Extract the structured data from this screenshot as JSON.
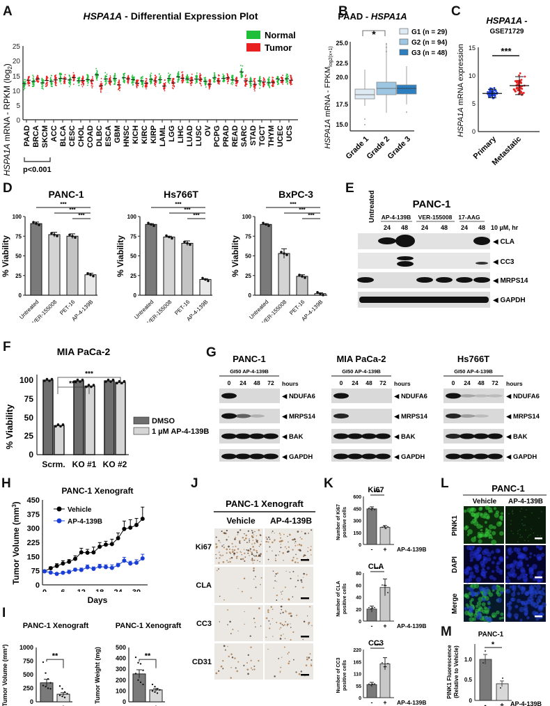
{
  "figure": {
    "panel_labels": [
      "A",
      "B",
      "C",
      "D",
      "E",
      "F",
      "G",
      "H",
      "I",
      "J",
      "K",
      "L",
      "M"
    ]
  },
  "panelA": {
    "label": "A",
    "title_gene": "HSPA1A",
    "title_rest": " - Differential Expression Plot",
    "ylabel_gene": "HSPA1A",
    "ylabel_rest": " mRNA - RPKM (log",
    "ylabel_sub": "2",
    "ylabel_end": ")",
    "legend": [
      {
        "name": "Normal",
        "color": "#1fbf3a"
      },
      {
        "name": "Tumor",
        "color": "#e8201f"
      }
    ],
    "yticks": [
      "0",
      "5",
      "10",
      "15",
      "20",
      "25"
    ],
    "bracket_label": "p<0.001"
  },
  "panelB": {
    "label": "B",
    "title_pre": "PAAD - ",
    "title_gene": "HSPA1A",
    "ylabel_gene": "HSPA1A",
    "ylabel_rest": " mRNA - FPKM",
    "ylabel_sub": "log2(x+1)",
    "yticks": [
      "15.0",
      "17.5",
      "20.0",
      "22.5",
      "25.0"
    ],
    "sig": "*",
    "legend": [
      {
        "name": "G1 (n = 29)",
        "color": "#dde9f3"
      },
      {
        "name": "G2 (n = 94)",
        "color": "#9cc6e2"
      },
      {
        "name": "G3 (n = 48)",
        "color": "#2d7fbf"
      }
    ]
  },
  "panelC": {
    "label": "C",
    "title_gene": "HSPA1A -",
    "subtitle": "GSE71729",
    "ylabel_gene": "HSPA1A",
    "ylabel_rest": " mRNA expression",
    "yticks": [
      "0",
      "5",
      "10",
      "15"
    ],
    "sig": "***"
  },
  "panelD": {
    "label": "D",
    "ylabel": "% Viability",
    "yticks": [
      "0",
      "25",
      "50",
      "75",
      "100"
    ],
    "sig": "***"
  },
  "panelE": {
    "label": "E",
    "title": "PANC-1",
    "untreated": "Untreated",
    "groups": [
      "AP-4-139B",
      "VER-155008",
      "17-AAG"
    ],
    "times": [
      "24",
      "48",
      "24",
      "48",
      "24",
      "48"
    ],
    "dose_label": "10 µM, hr",
    "bands": [
      "CLA",
      "CC3",
      "MRPS14",
      "GAPDH"
    ]
  },
  "panelF": {
    "label": "F",
    "title": "MIA PaCa-2",
    "ylabel": "% Viability",
    "yticks": [
      "0",
      "25",
      "50",
      "75",
      "100"
    ],
    "sig": "***",
    "legend": [
      {
        "name": "DMSO",
        "color": "#6e6e6e"
      },
      {
        "name": "1 µM AP-4-139B",
        "color": "#d6d6d6"
      }
    ]
  },
  "panelG": {
    "label": "G",
    "header": "GI50 AP-4-139B",
    "hours_label": "hours",
    "times": [
      "0",
      "24",
      "48",
      "72"
    ],
    "bands": [
      "NDUFA6",
      "MRPS14",
      "BAK",
      "GAPDH"
    ],
    "cell_lines": [
      "PANC-1",
      "MIA PaCa-2",
      "Hs766T"
    ]
  },
  "panelH": {
    "label": "H",
    "title": "PANC-1 Xenograft",
    "ylabel": "Tumor Volume (mm",
    "ylabel_sup": "3",
    "ylabel_end": ")",
    "xlabel": "Days",
    "yticks": [
      "0",
      "75",
      "150",
      "225",
      "300",
      "375",
      "450"
    ],
    "xticks": [
      "0",
      "6",
      "12",
      "18",
      "24",
      "30"
    ]
  },
  "panelI": {
    "label": "I",
    "titles": [
      "PANC-1 Xenograft",
      "PANC-1 Xenograft"
    ],
    "ylabels": [
      "Tumor Volume (mm³)",
      "Tumor Weight (mg)"
    ],
    "yticks_vol": [
      "0",
      "250",
      "500",
      "750",
      "1000"
    ],
    "yticks_wt": [
      "0",
      "100",
      "200",
      "300",
      "400",
      "500"
    ],
    "sig": "**",
    "xcats": [
      "-",
      "+"
    ],
    "treatment": "AP-4-139B"
  },
  "panelJ": {
    "label": "J",
    "title": "PANC-1 Xenograft",
    "columns": [
      "Vehicle",
      "AP-4-139B"
    ],
    "rows": [
      "Ki67",
      "CLA",
      "CC3",
      "CD31"
    ]
  },
  "panelK": {
    "label": "K",
    "treatment": "AP-4-139B",
    "xcats": [
      "-",
      "+"
    ],
    "sig": "***"
  },
  "panelL": {
    "label": "L",
    "title": "PANC-1",
    "columns": [
      "Vehicle",
      "AP-4-139B"
    ],
    "rows": [
      "PINK1",
      "DAPI",
      "Merge"
    ]
  },
  "panelM": {
    "label": "M",
    "title": "PANC-1",
    "ylabel1": "PINK1 Fluorescence",
    "ylabel2": "(Relative to Vehicle)",
    "yticks": [
      "0",
      "0.5",
      "1.0"
    ],
    "sig": "*",
    "xcats": [
      "-",
      "+"
    ],
    "treatment": "AP-4-139B"
  },
  "chart_data": [
    {
      "id": "A",
      "type": "scatter",
      "title": "HSPA1A - Differential Expression Plot",
      "xlabel": "",
      "ylabel": "HSPA1A mRNA - RPKM (log2)",
      "ylim": [
        0,
        25
      ],
      "categories": [
        "PAAD",
        "BRCA",
        "SKCM",
        "ACC",
        "BLCA",
        "CESC",
        "CHOL",
        "COAD",
        "DLBC",
        "ESCA",
        "GBM",
        "HNSC",
        "KICH",
        "KIRC",
        "KIRP",
        "LAML",
        "LGG",
        "LIHC",
        "LUAD",
        "LUSC",
        "OV",
        "PCPG",
        "PRAD",
        "READ",
        "SARC",
        "STAD",
        "TGCT",
        "THYM",
        "UCEC",
        "UCS"
      ],
      "series": [
        {
          "name": "Normal",
          "values": [
            12.2,
            13.0,
            12.5,
            13.0,
            14.0,
            13.5,
            13.2,
            13.6,
            15.2,
            13.8,
            14.0,
            14.2,
            13.6,
            13.2,
            13.7,
            13.6,
            14.0,
            14.5,
            13.8,
            13.8,
            13.0,
            14.2,
            14.0,
            13.5,
            16.2,
            13.0,
            13.2,
            12.5,
            13.8,
            13.9
          ]
        },
        {
          "name": "Tumor",
          "values": [
            13.4,
            13.8,
            13.3,
            13.5,
            13.8,
            14.3,
            13.3,
            13.2,
            11.5,
            13.0,
            11.8,
            13.9,
            12.4,
            12.4,
            13.2,
            11.4,
            12.5,
            14.0,
            13.4,
            13.7,
            12.0,
            13.2,
            14.2,
            13.2,
            13.2,
            12.0,
            12.8,
            12.7,
            13.3,
            13.4
          ]
        }
      ],
      "annotations": [
        "p<0.001 (PAAD, BRCA, SKCM)"
      ],
      "legend_position": "top-right"
    },
    {
      "id": "B",
      "type": "box",
      "title": "PAAD - HSPA1A",
      "ylabel": "HSPA1A mRNA - FPKM log2(x+1)",
      "ylim": [
        14.5,
        26
      ],
      "categories": [
        "Grade 1",
        "Grade 2",
        "Grade 3"
      ],
      "series": [
        {
          "name": "G1 (n = 29)",
          "q1": 18.3,
          "median": 18.8,
          "q3": 19.4,
          "min": 17.3,
          "max": 21.2,
          "outliers": [
            15.8,
            14.8
          ]
        },
        {
          "name": "G2 (n = 94)",
          "q1": 18.6,
          "median": 19.3,
          "q3": 20.2,
          "min": 16.5,
          "max": 22.3,
          "outliers": [
            23.0,
            23.5,
            24.1,
            24.5,
            24.8
          ]
        },
        {
          "name": "G3 (n = 48)",
          "q1": 18.7,
          "median": 19.4,
          "q3": 19.9,
          "min": 17.5,
          "max": 21.4,
          "outliers": [
            16.6
          ]
        }
      ],
      "annotations": [
        "* (Grade 1 vs Grade 2)"
      ]
    },
    {
      "id": "C",
      "type": "scatter",
      "title": "HSPA1A - GSE71729",
      "ylabel": "HSPA1A mRNA expression",
      "ylim": [
        0,
        15
      ],
      "categories": [
        "Primary",
        "Metastatic"
      ],
      "series": [
        {
          "name": "Primary",
          "mean": 6.8,
          "sd": 0.7,
          "range": [
            5.3,
            10.1
          ],
          "color": "#1a3fd6"
        },
        {
          "name": "Metastatic",
          "mean": 8.2,
          "sd": 1.7,
          "range": [
            5.2,
            12.0
          ],
          "color": "#e8201f"
        }
      ],
      "annotations": [
        "***"
      ]
    },
    {
      "id": "D-PANC-1",
      "type": "bar",
      "title": "PANC-1",
      "ylabel": "% Viability",
      "ylim": [
        0,
        100
      ],
      "categories": [
        "Untreated",
        "VER-155008",
        "PET-16",
        "AP-4-139B"
      ],
      "values": [
        91,
        77,
        75,
        26
      ],
      "errors": [
        2,
        3,
        3,
        2
      ],
      "annotations": [
        "*** Untreated vs AP-4-139B",
        "*** VER-155008 vs AP-4-139B",
        "*** PET-16 vs AP-4-139B"
      ]
    },
    {
      "id": "D-Hs766T",
      "type": "bar",
      "title": "Hs766T",
      "ylabel": "% Viability",
      "ylim": [
        0,
        100
      ],
      "categories": [
        "Untreated",
        "VER-155008",
        "PET-16",
        "AP-4-139B"
      ],
      "values": [
        90,
        74,
        66,
        20
      ],
      "errors": [
        1,
        1,
        3,
        1
      ],
      "annotations": [
        "***",
        "***",
        "***"
      ]
    },
    {
      "id": "D-BxPC-3",
      "type": "bar",
      "title": "BxPC-3",
      "ylabel": "% Viability",
      "ylim": [
        0,
        100
      ],
      "categories": [
        "Untreated",
        "VER-155008",
        "PET-16",
        "AP-4-139B"
      ],
      "values": [
        90,
        53,
        24,
        2
      ],
      "errors": [
        1,
        6,
        2,
        1
      ],
      "annotations": [
        "***",
        "***",
        "***"
      ]
    },
    {
      "id": "F",
      "type": "bar",
      "title": "MIA PaCa-2",
      "ylabel": "% Viability",
      "ylim": [
        0,
        100
      ],
      "categories": [
        "Scrm.",
        "KO #1",
        "KO #2"
      ],
      "series": [
        {
          "name": "DMSO",
          "values": [
            100,
            99,
            99
          ],
          "errors": [
            1,
            3,
            1
          ]
        },
        {
          "name": "1 µM AP-4-139B",
          "values": [
            39,
            92,
            97
          ],
          "errors": [
            1,
            2,
            1
          ]
        }
      ],
      "annotations": [
        "*** Scrm. vs KO #1",
        "*** Scrm. vs KO #2"
      ],
      "legend_position": "right"
    },
    {
      "id": "H",
      "type": "line",
      "title": "PANC-1 Xenograft",
      "xlabel": "Days",
      "ylabel": "Tumor Volume (mm³)",
      "ylim": [
        0,
        450
      ],
      "xlim": [
        0,
        32
      ],
      "x": [
        0,
        2,
        4,
        6,
        8,
        10,
        12,
        14,
        16,
        18,
        20,
        22,
        24,
        26,
        28,
        30,
        32
      ],
      "series": [
        {
          "name": "Vehicle",
          "color": "#000000",
          "values": [
            72,
            88,
            100,
            113,
            122,
            138,
            172,
            170,
            172,
            202,
            213,
            216,
            247,
            296,
            303,
            317,
            350
          ],
          "errors": [
            5,
            8,
            12,
            15,
            12,
            16,
            22,
            18,
            28,
            22,
            18,
            26,
            28,
            42,
            42,
            35,
            62
          ]
        },
        {
          "name": "AP-4-139B",
          "color": "#1a3fd6",
          "values": [
            72,
            65,
            58,
            64,
            68,
            80,
            79,
            93,
            85,
            97,
            94,
            90,
            104,
            128,
            113,
            117,
            140
          ],
          "errors": [
            5,
            6,
            6,
            6,
            10,
            8,
            10,
            12,
            10,
            12,
            12,
            16,
            10,
            18,
            12,
            16,
            22
          ]
        }
      ],
      "legend_position": "top-left"
    },
    {
      "id": "I-volume",
      "type": "bar",
      "title": "PANC-1 Xenograft",
      "ylabel": "Tumor Volume (mm³)",
      "ylim": [
        0,
        1000
      ],
      "categories": [
        "-",
        "+"
      ],
      "values": [
        350,
        140
      ],
      "errors": [
        65,
        30
      ],
      "annotations": [
        "**"
      ]
    },
    {
      "id": "I-weight",
      "type": "bar",
      "title": "PANC-1 Xenograft",
      "ylabel": "Tumor Weight (mg)",
      "ylim": [
        0,
        500
      ],
      "categories": [
        "-",
        "+"
      ],
      "values": [
        257,
        110
      ],
      "errors": [
        38,
        12
      ],
      "xlabel": "AP-4-139B",
      "annotations": [
        "**"
      ]
    },
    {
      "id": "K-Ki67",
      "type": "bar",
      "title": "Ki67",
      "ylabel": "Number of Ki67 positive cells",
      "ylim": [
        0,
        600
      ],
      "categories": [
        "-",
        "+"
      ],
      "values": [
        445,
        215
      ],
      "errors": [
        25,
        20
      ],
      "xlabel": "AP-4-139B",
      "annotations": [
        "***"
      ]
    },
    {
      "id": "K-CLA",
      "type": "bar",
      "title": "CLA",
      "ylabel": "Number of CLA positive cells",
      "ylim": [
        0,
        80
      ],
      "categories": [
        "-",
        "+"
      ],
      "values": [
        20,
        56
      ],
      "errors": [
        5,
        14
      ],
      "xlabel": "AP-4-139B",
      "annotations": [
        "***"
      ]
    },
    {
      "id": "K-CC3",
      "type": "bar",
      "title": "CC3",
      "ylabel": "Number of CC3 positive cells",
      "ylim": [
        0,
        220
      ],
      "categories": [
        "-",
        "+"
      ],
      "values": [
        60,
        155
      ],
      "errors": [
        10,
        28
      ],
      "xlabel": "AP-4-139B",
      "annotations": [
        "***"
      ]
    },
    {
      "id": "M",
      "type": "bar",
      "title": "PANC-1",
      "ylabel": "PINK1 Fluorescence (Relative to Vehicle)",
      "ylim": [
        0,
        1.3
      ],
      "categories": [
        "-",
        "+"
      ],
      "values": [
        1.0,
        0.4
      ],
      "errors": [
        0.12,
        0.07
      ],
      "xlabel": "AP-4-139B",
      "annotations": [
        "*"
      ]
    }
  ]
}
